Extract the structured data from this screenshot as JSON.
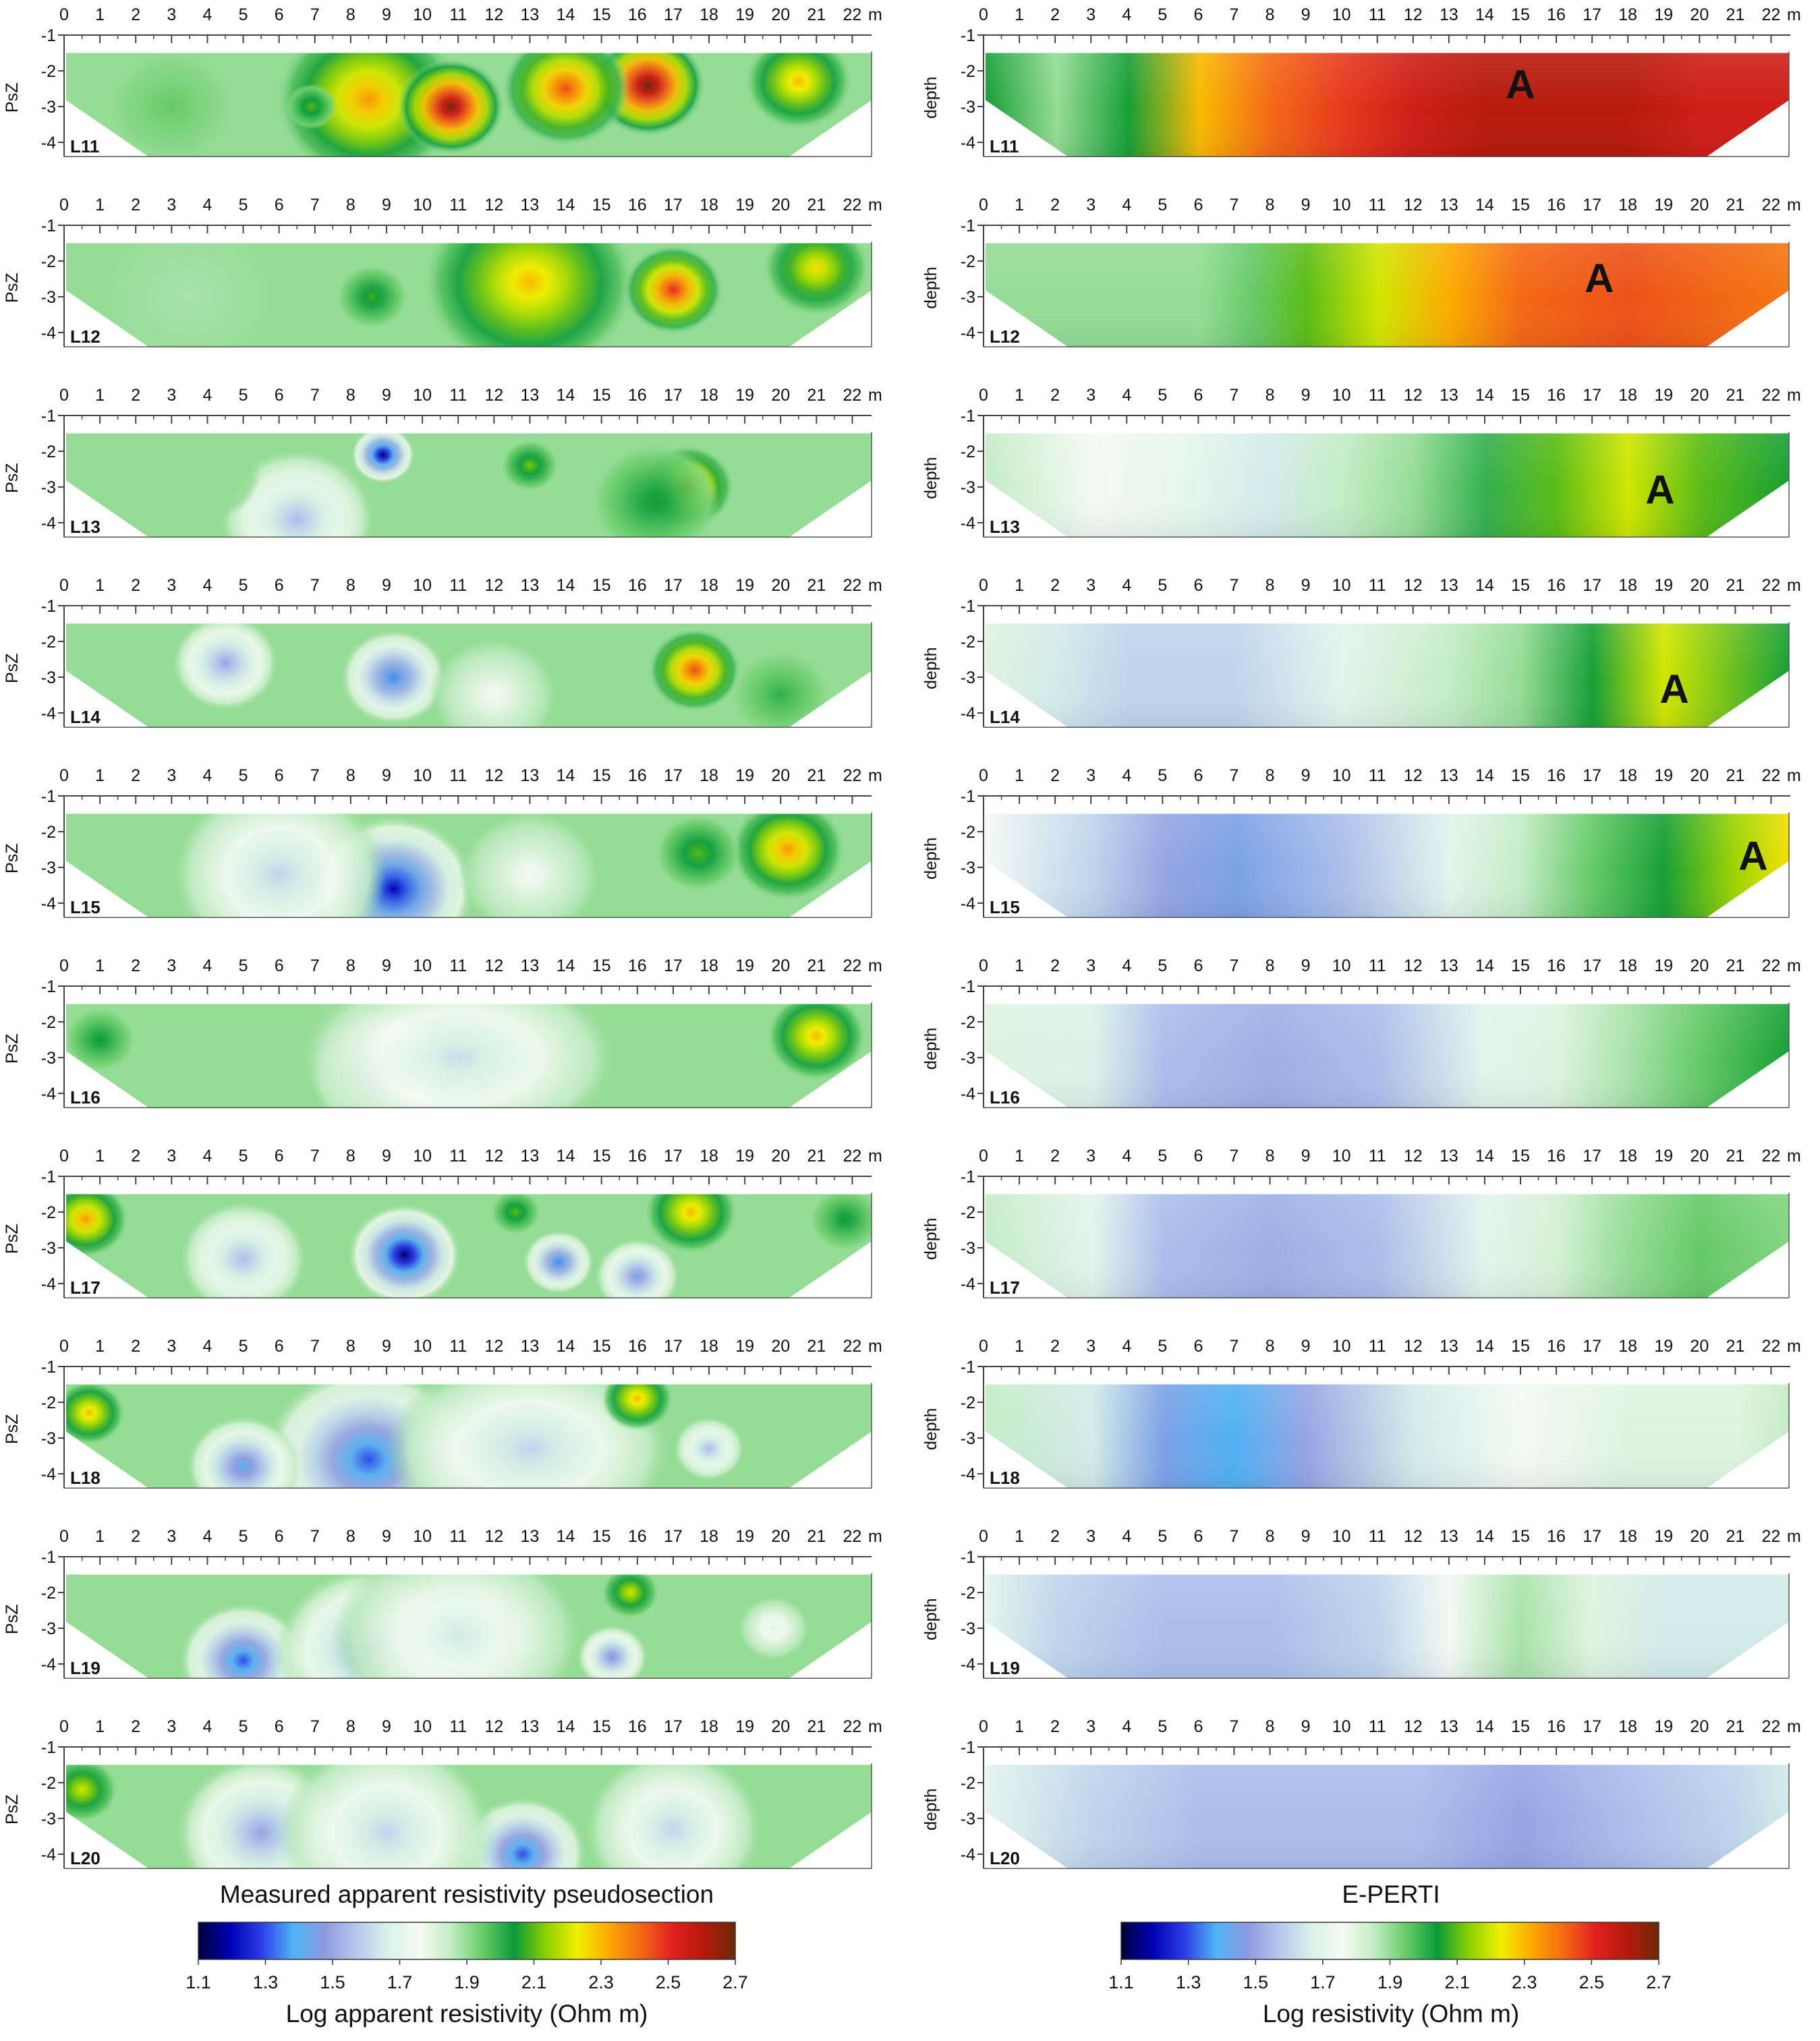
{
  "figure": {
    "left_caption": "Measured apparent resistivity pseudosection",
    "right_caption": "E-PERTI",
    "left_ylabel": "PsZ",
    "right_ylabel": "depth",
    "x_unit": "m",
    "x_ticks": [
      0,
      1,
      2,
      3,
      4,
      5,
      6,
      7,
      8,
      9,
      10,
      11,
      12,
      13,
      14,
      15,
      16,
      17,
      18,
      19,
      20,
      21,
      22
    ],
    "y_ticks": [
      -1,
      -2,
      -3,
      -4
    ],
    "lines": [
      "L11",
      "L12",
      "L13",
      "L14",
      "L15",
      "L16",
      "L17",
      "L18",
      "L19",
      "L20"
    ],
    "anomaly_label": "A",
    "left_colorbar_label": "Log apparent resistivity (Ohm m)",
    "right_colorbar_label": "Log resistivity (Ohm m)",
    "colorbar_ticks": [
      "1.1",
      "1.3",
      "1.5",
      "1.7",
      "1.9",
      "2.1",
      "2.3",
      "2.5",
      "2.7"
    ],
    "colorbar_range": [
      1.1,
      2.7
    ],
    "colorbar_stops": [
      "#00003a",
      "#0000b4",
      "#2a3ee6",
      "#50b4f4",
      "#8c9ae0",
      "#b4c8ee",
      "#d8f2e8",
      "#f6fbf4",
      "#c2ecc4",
      "#68cc68",
      "#0a9a3a",
      "#8cd000",
      "#f0f000",
      "#fba800",
      "#f46a14",
      "#e02020",
      "#b41a0a",
      "#6a2a08"
    ]
  },
  "chart_data": [
    {
      "type": "heatmap",
      "title": "Measured apparent resistivity pseudosection",
      "xlabel": "m",
      "ylabel": "PsZ",
      "xlim": [
        0,
        22.5
      ],
      "ylim": [
        -4.4,
        -1
      ],
      "value_label": "Log apparent resistivity (Ohm m)",
      "value_range": [
        1.1,
        2.7
      ],
      "sections": [
        {
          "line": "L11",
          "blobs": [
            {
              "x": 8.5,
              "y": -2.8,
              "v": 2.35,
              "r": 2.6
            },
            {
              "x": 10.8,
              "y": -3.0,
              "v": 2.68,
              "r": 1.5
            },
            {
              "x": 16.3,
              "y": -2.4,
              "v": 2.7,
              "r": 1.6
            },
            {
              "x": 14.0,
              "y": -2.5,
              "v": 2.45,
              "r": 1.8
            },
            {
              "x": 3.0,
              "y": -3.0,
              "v": 1.95,
              "r": 1.8
            },
            {
              "x": 6.9,
              "y": -3.0,
              "v": 2.1,
              "r": 0.7
            },
            {
              "x": 20.5,
              "y": -2.3,
              "v": 2.3,
              "r": 1.5
            }
          ]
        },
        {
          "line": "L12",
          "blobs": [
            {
              "x": 3.5,
              "y": -3.0,
              "v": 1.88,
              "r": 2.6
            },
            {
              "x": 13.0,
              "y": -2.6,
              "v": 2.3,
              "r": 3.0
            },
            {
              "x": 17.0,
              "y": -2.8,
              "v": 2.5,
              "r": 1.4
            },
            {
              "x": 21.0,
              "y": -2.2,
              "v": 2.25,
              "r": 1.5
            },
            {
              "x": 8.6,
              "y": -3.0,
              "v": 2.08,
              "r": 1.0
            }
          ]
        },
        {
          "line": "L13",
          "blobs": [
            {
              "x": 8.9,
              "y": -2.1,
              "v": 1.15,
              "r": 0.9
            },
            {
              "x": 6.5,
              "y": -3.9,
              "v": 1.55,
              "r": 2.2
            },
            {
              "x": 17.4,
              "y": -3.0,
              "v": 2.4,
              "r": 1.3
            },
            {
              "x": 13.0,
              "y": -2.4,
              "v": 2.12,
              "r": 0.8
            },
            {
              "x": 16.5,
              "y": -3.4,
              "v": 2.05,
              "r": 1.8
            },
            {
              "x": 4.0,
              "y": -2.6,
              "v": 1.9,
              "r": 1.5
            }
          ]
        },
        {
          "line": "L14",
          "blobs": [
            {
              "x": 4.5,
              "y": -2.6,
              "v": 1.5,
              "r": 1.5
            },
            {
              "x": 9.2,
              "y": -3.0,
              "v": 1.35,
              "r": 1.5
            },
            {
              "x": 17.6,
              "y": -2.8,
              "v": 2.45,
              "r": 1.3
            },
            {
              "x": 12.0,
              "y": -3.5,
              "v": 1.75,
              "r": 1.8
            },
            {
              "x": 20.0,
              "y": -3.5,
              "v": 2.0,
              "r": 1.4
            }
          ]
        },
        {
          "line": "L15",
          "blobs": [
            {
              "x": 9.2,
              "y": -3.6,
              "v": 1.2,
              "r": 2.3
            },
            {
              "x": 6.0,
              "y": -3.2,
              "v": 1.6,
              "r": 3.0
            },
            {
              "x": 13.0,
              "y": -3.2,
              "v": 1.75,
              "r": 2.0
            },
            {
              "x": 20.2,
              "y": -2.5,
              "v": 2.35,
              "r": 1.6
            },
            {
              "x": 17.7,
              "y": -2.6,
              "v": 2.1,
              "r": 1.2
            }
          ]
        },
        {
          "line": "L16",
          "blobs": [
            {
              "x": 8.8,
              "y": -3.4,
              "v": 1.45,
              "r": 2.0
            },
            {
              "x": 11.0,
              "y": -3.0,
              "v": 1.62,
              "r": 4.5
            },
            {
              "x": 21.0,
              "y": -2.4,
              "v": 2.3,
              "r": 1.4
            },
            {
              "x": 1.0,
              "y": -2.5,
              "v": 2.05,
              "r": 1.0
            }
          ]
        },
        {
          "line": "L17",
          "blobs": [
            {
              "x": 9.5,
              "y": -3.2,
              "v": 1.15,
              "r": 1.6
            },
            {
              "x": 13.8,
              "y": -3.4,
              "v": 1.35,
              "r": 1.0
            },
            {
              "x": 5.0,
              "y": -3.3,
              "v": 1.55,
              "r": 1.8
            },
            {
              "x": 0.6,
              "y": -2.2,
              "v": 2.35,
              "r": 1.2
            },
            {
              "x": 17.5,
              "y": -2.0,
              "v": 2.3,
              "r": 1.3
            },
            {
              "x": 16.0,
              "y": -3.8,
              "v": 1.45,
              "r": 1.2
            },
            {
              "x": 12.6,
              "y": -2.0,
              "v": 2.1,
              "r": 0.7
            },
            {
              "x": 21.8,
              "y": -2.2,
              "v": 2.05,
              "r": 1.0
            }
          ]
        },
        {
          "line": "L18",
          "blobs": [
            {
              "x": 8.5,
              "y": -3.6,
              "v": 1.3,
              "r": 3.0
            },
            {
              "x": 5.0,
              "y": -3.8,
              "v": 1.4,
              "r": 1.6
            },
            {
              "x": 13.0,
              "y": -3.3,
              "v": 1.6,
              "r": 4.0
            },
            {
              "x": 18.0,
              "y": -3.3,
              "v": 1.55,
              "r": 1.0
            },
            {
              "x": 16.0,
              "y": -1.9,
              "v": 2.3,
              "r": 1.0
            },
            {
              "x": 0.7,
              "y": -2.3,
              "v": 2.3,
              "r": 1.0
            }
          ]
        },
        {
          "line": "L19",
          "blobs": [
            {
              "x": 5.0,
              "y": -3.9,
              "v": 1.3,
              "r": 1.8
            },
            {
              "x": 8.5,
              "y": -3.6,
              "v": 1.5,
              "r": 2.6
            },
            {
              "x": 15.3,
              "y": -3.8,
              "v": 1.45,
              "r": 1.0
            },
            {
              "x": 15.8,
              "y": -2.0,
              "v": 2.2,
              "r": 0.8
            },
            {
              "x": 19.8,
              "y": -3.0,
              "v": 1.7,
              "r": 1.0
            },
            {
              "x": 11.0,
              "y": -3.2,
              "v": 1.65,
              "r": 3.5
            }
          ]
        },
        {
          "line": "L20",
          "blobs": [
            {
              "x": 12.8,
              "y": -4.0,
              "v": 1.3,
              "r": 1.8
            },
            {
              "x": 5.5,
              "y": -3.4,
              "v": 1.5,
              "r": 2.4
            },
            {
              "x": 9.0,
              "y": -3.4,
              "v": 1.6,
              "r": 3.0
            },
            {
              "x": 17.0,
              "y": -3.3,
              "v": 1.6,
              "r": 2.5
            },
            {
              "x": 0.5,
              "y": -2.2,
              "v": 2.2,
              "r": 1.0
            }
          ]
        }
      ]
    },
    {
      "type": "heatmap",
      "title": "E-PERTI",
      "xlabel": "m",
      "ylabel": "depth",
      "xlim": [
        0,
        22.5
      ],
      "ylim": [
        -4.4,
        -1
      ],
      "value_label": "Log resistivity (Ohm m)",
      "value_range": [
        1.1,
        2.7
      ],
      "sections": [
        {
          "line": "L11",
          "gradient": {
            "xs": [
              0,
              2,
              4,
              6,
              8,
              10,
              12,
              14,
              16,
              18,
              20,
              22.5
            ],
            "vs": [
              2.05,
              1.9,
              2.05,
              2.3,
              2.42,
              2.48,
              2.55,
              2.6,
              2.6,
              2.6,
              2.55,
              2.55
            ]
          },
          "label_x": 15.0,
          "label_y": -2.35
        },
        {
          "line": "L12",
          "gradient": {
            "xs": [
              0,
              3,
              6,
              7.5,
              9,
              11,
              13,
              15,
              18,
              22.5
            ],
            "vs": [
              1.9,
              1.9,
              1.9,
              1.95,
              2.1,
              2.2,
              2.32,
              2.42,
              2.45,
              2.4
            ]
          },
          "label_x": 17.2,
          "label_y": -2.45
        },
        {
          "line": "L13",
          "gradient": {
            "xs": [
              0,
              3,
              6,
              8,
              10,
              12,
              14,
              16,
              18,
              20,
              22.5
            ],
            "vs": [
              1.85,
              1.75,
              1.7,
              1.65,
              1.85,
              1.9,
              2.0,
              2.1,
              2.2,
              2.1,
              2.05
            ]
          },
          "label_x": 18.9,
          "label_y": -3.05
        },
        {
          "line": "L14",
          "gradient": {
            "xs": [
              0,
              2,
              4,
              7,
              10,
              13,
              15,
              17,
              19,
              22.5
            ],
            "vs": [
              1.8,
              1.65,
              1.6,
              1.6,
              1.7,
              1.85,
              1.9,
              2.05,
              2.2,
              2.05
            ]
          },
          "label_x": 19.3,
          "label_y": -3.3
        },
        {
          "line": "L15",
          "gradient": {
            "xs": [
              0,
              3,
              5,
              7,
              10,
              13,
              15,
              17,
              19,
              21,
              22.5
            ],
            "vs": [
              1.75,
              1.6,
              1.5,
              1.45,
              1.55,
              1.7,
              1.85,
              1.95,
              2.05,
              2.15,
              2.25
            ]
          },
          "label_x": 21.5,
          "label_y": -2.65
        },
        {
          "line": "L16",
          "gradient": {
            "xs": [
              0,
              3,
              5,
              8,
              11,
              14,
              16,
              18,
              20,
              22.5
            ],
            "vs": [
              1.8,
              1.68,
              1.55,
              1.52,
              1.55,
              1.7,
              1.8,
              1.88,
              1.95,
              2.05
            ]
          }
        },
        {
          "line": "L17",
          "gradient": {
            "xs": [
              0,
              3,
              5,
              8,
              11,
              14,
              16,
              18,
              20,
              22.5
            ],
            "vs": [
              1.85,
              1.7,
              1.55,
              1.52,
              1.55,
              1.7,
              1.82,
              1.9,
              1.95,
              1.92
            ]
          }
        },
        {
          "line": "L18",
          "gradient": {
            "xs": [
              0,
              3,
              5,
              7,
              9,
              12,
              15,
              18,
              21,
              22.5
            ],
            "vs": [
              1.85,
              1.65,
              1.45,
              1.38,
              1.5,
              1.65,
              1.75,
              1.8,
              1.8,
              1.85
            ]
          }
        },
        {
          "line": "L19",
          "gradient": {
            "xs": [
              0,
              2,
              5,
              8,
              11,
              13,
              15,
              17,
              19,
              22.5
            ],
            "vs": [
              1.7,
              1.6,
              1.55,
              1.55,
              1.6,
              1.75,
              1.88,
              1.8,
              1.65,
              1.65
            ]
          }
        },
        {
          "line": "L20",
          "gradient": {
            "xs": [
              0,
              3,
              6,
              9,
              12,
              15,
              18,
              21,
              22.5
            ],
            "vs": [
              1.7,
              1.6,
              1.55,
              1.55,
              1.55,
              1.5,
              1.55,
              1.6,
              1.65
            ]
          }
        }
      ]
    }
  ]
}
